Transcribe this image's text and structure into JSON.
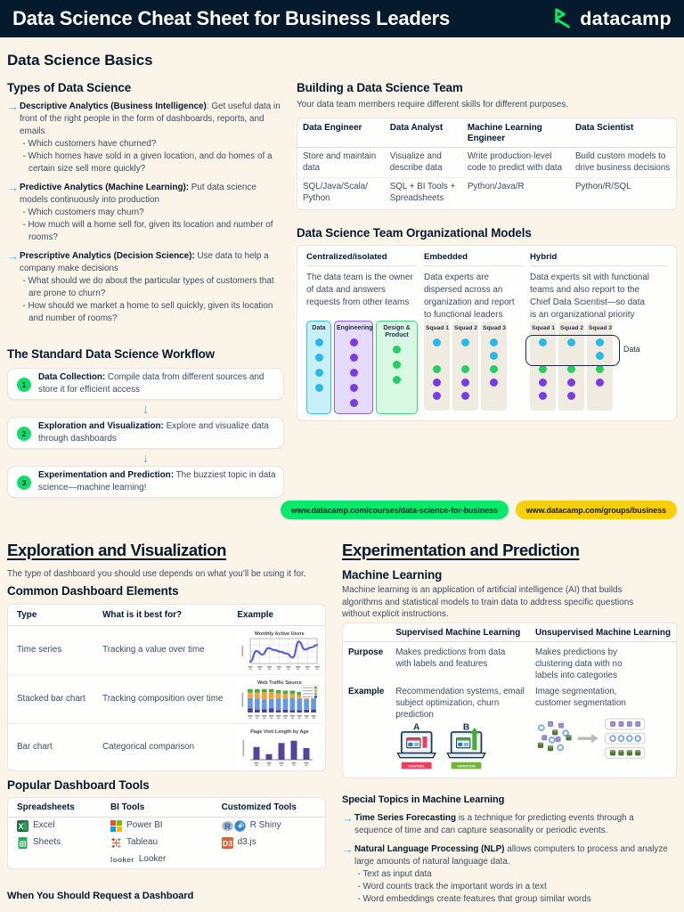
{
  "header": {
    "title": "Data Science Cheat Sheet for Business Leaders",
    "logo_text": "datacamp"
  },
  "colors": {
    "navy": "#05192d",
    "cream": "#faf4e9",
    "cyan": "#2fb8e8",
    "green": "#06e96b",
    "yellow": "#fbce0c",
    "purple": "#7b3be4",
    "blue": "#29b9e8"
  },
  "basics": {
    "title": "Data Science Basics",
    "types": {
      "title": "Types of Data Science",
      "items": [
        {
          "term": "Descriptive Analytics (Business Intelligence)",
          "desc": ": Get useful data in front of the right people in the form of dashboards, reports, and emails",
          "questions": [
            "- Which customers have churned?",
            "- Which homes have sold in a given location, and do homes of a certain size sell more quickly?"
          ]
        },
        {
          "term": "Predictive Analytics (Machine Learning):",
          "desc": " Put data science models continuously into production",
          "questions": [
            "- Which customers may churn?",
            "- How much will a home sell for, given its location and number of rooms?"
          ]
        },
        {
          "term": "Prescriptive Analytics (Decision Science):",
          "desc": " Use data to help a company make decisions",
          "questions": [
            "- What should we do about the particular types of customers that are prone to churn?",
            "- How should we market a home to sell quickly, given its location and number of rooms?"
          ]
        }
      ]
    },
    "workflow": {
      "title": "The Standard Data Science Workflow",
      "arrow": "↓",
      "steps": [
        {
          "num": "1",
          "term": "Data Collection:",
          "desc": " Compile data from different sources and store it for efficient access"
        },
        {
          "num": "2",
          "term": "Exploration and Visualization:",
          "desc": " Explore and visualize data through dashboards"
        },
        {
          "num": "3",
          "term": "Experimentation and Prediction:",
          "desc": " The buzziest topic in data science—machine learning!"
        }
      ]
    },
    "team": {
      "title": "Building a Data Science Team",
      "intro": "Your data team members require different skills for different purposes.",
      "headers": [
        "Data Engineer",
        "Data Analyst",
        "Machine Learning Engineer",
        "Data Scientist"
      ],
      "row_skills": [
        "Store and maintain data",
        "Visualize and describe data",
        "Write production-level code to predict with data",
        "Build custom models to drive business decisions"
      ],
      "row_tools": [
        "SQL/Java/Scala/ Python",
        "SQL + BI Tools + Spreadsheets",
        "Python/Java/R",
        "Python/R/SQL"
      ]
    },
    "org": {
      "title": "Data Science Team Organizational Models",
      "models": [
        {
          "name": "Centralized/isolated",
          "desc": "The data team is the owner of data and answers requests from other teams"
        },
        {
          "name": "Embedded",
          "desc": "Data experts are dispersed across an organization and report to functional leaders"
        },
        {
          "name": "Hybrid",
          "desc": "Data experts sit with functional teams and also report to the Chief Data Scientist—so data is an organizational priority"
        }
      ],
      "central_groups": [
        {
          "label": "Data",
          "style": "grp-blue",
          "dots": [
            "blue",
            "blue",
            "blue",
            "blue"
          ]
        },
        {
          "label": "Engineering",
          "style": "grp-purple",
          "dots": [
            "purple",
            "purple",
            "purple",
            "purple",
            "purple"
          ]
        },
        {
          "label": "Design & Product",
          "style": "grp-green",
          "dots": [
            "green",
            "green",
            "green"
          ]
        }
      ],
      "embedded_squads": [
        {
          "label": "Squad 1",
          "dots": [
            "blue",
            "empty",
            "green",
            "purple",
            "purple"
          ]
        },
        {
          "label": "Squad 2",
          "dots": [
            "blue",
            "empty",
            "green",
            "purple",
            "purple"
          ]
        },
        {
          "label": "Squad 3",
          "dots": [
            "blue",
            "blue",
            "green",
            "purple"
          ]
        }
      ],
      "hybrid_squads": [
        {
          "label": "Squad 1",
          "dots": [
            "blue",
            "empty",
            "green",
            "purple",
            "purple"
          ]
        },
        {
          "label": "Squad 2",
          "dots": [
            "blue",
            "empty",
            "green",
            "purple",
            "purple"
          ]
        },
        {
          "label": "Squad 3",
          "dots": [
            "blue",
            "blue",
            "green",
            "purple"
          ]
        }
      ],
      "hybrid_callout": "Data"
    },
    "links": {
      "courses": "www.datacamp.com/courses/data-science-for-business",
      "groups": "www.datacamp.com/groups/business"
    }
  },
  "exploration": {
    "title": "Exploration and Visualization",
    "intro": "The type of dashboard you should use depends on what you’ll be using it for.",
    "elements": {
      "title": "Common Dashboard Elements",
      "headers": [
        "Type",
        "What is it best for?",
        "Example"
      ],
      "rows": [
        {
          "type": "Time series",
          "best": "Tracking a value over time"
        },
        {
          "type": "Stacked bar chart",
          "best": "Tracking composition over time"
        },
        {
          "type": "Bar chart",
          "best": "Categorical comparison"
        }
      ]
    },
    "tools": {
      "title": "Popular Dashboard Tools",
      "headers": [
        "Spreadsheets",
        "BI Tools",
        "Customized Tools"
      ],
      "spreadsheets": [
        "Excel",
        "Sheets"
      ],
      "bi": [
        "Power BI",
        "Tableau",
        "Looker"
      ],
      "custom": [
        "R Shiny",
        "d3.js"
      ],
      "looker_mark": "looker"
    },
    "request_title": "When You Should Request a Dashboard"
  },
  "experimentation": {
    "title": "Experimentation and Prediction",
    "ml": {
      "title": "Machine Learning",
      "desc": "Machine learning is an application of artificial intelligence (AI) that builds algorithms and statistical models to train data to address specific questions without explicit instructions.",
      "col_headers": [
        "Supervised Machine Learning",
        "Unsupervised Machine Learning"
      ],
      "purpose_label": "Purpose",
      "purpose_supervised": "Makes predictions from data with labels and features",
      "purpose_unsupervised": "Makes predictions by clustering data with no labels into categories",
      "example_label": "Example",
      "example_supervised": "Recommendation systems, email subject optimization, churn prediction",
      "example_unsupervised": "Image segmentation, customer segmentation",
      "ab": {
        "a": "A",
        "b": "B",
        "control": "CONTROL",
        "variation": "VARIATION"
      }
    },
    "special": {
      "title": "Special Topics in Machine Learning",
      "items": [
        {
          "term": "Time Series Forecasting",
          "desc": " is a technique for predicting events through a sequence of time and can capture seasonality or periodic events.",
          "subs": []
        },
        {
          "term": "Natural Language Processing (NLP)",
          "desc": " allows computers to process and analyze large amounts of natural language data.",
          "subs": [
            "- Text as input data",
            "- Word counts track the important words in a text",
            "- Word embeddings create features that group similar words"
          ]
        }
      ]
    }
  },
  "chart_data": [
    {
      "id": "line-monthly-active-users",
      "type": "line",
      "title": "Monthly Active Users",
      "values": [
        8,
        50,
        36,
        62,
        54,
        47,
        40,
        24,
        88,
        56,
        64,
        74
      ],
      "ylim": [
        0,
        100
      ],
      "color": "#5a5fd0",
      "grid": true,
      "legend_position": "none"
    },
    {
      "id": "stacked-web-traffic-source",
      "type": "stacked_bar",
      "title": "Web Traffic Source",
      "categories": [
        "1",
        "2",
        "3",
        "4",
        "5",
        "6",
        "7",
        "8",
        "9",
        "10"
      ],
      "series": [
        {
          "name": "direct",
          "color": "#4d3d8f",
          "values": [
            16,
            12,
            13,
            16,
            10,
            11,
            10,
            9,
            11,
            12
          ]
        },
        {
          "name": "search",
          "color": "#6699dd",
          "values": [
            42,
            44,
            40,
            38,
            46,
            45,
            48,
            46,
            42,
            44
          ]
        },
        {
          "name": "referral",
          "color": "#f2a33c",
          "values": [
            22,
            24,
            28,
            28,
            20,
            18,
            16,
            14,
            12,
            12
          ]
        },
        {
          "name": "social",
          "color": "#56a444",
          "values": [
            14,
            14,
            13,
            12,
            14,
            14,
            14,
            14,
            20,
            17
          ]
        }
      ],
      "ylim": [
        0,
        100
      ],
      "legend_position": "top-right"
    },
    {
      "id": "bar-page-visit-length",
      "type": "bar",
      "title": "Page Visit Length by Age",
      "categories": [
        "<18",
        "18-25",
        "25-35",
        "35-45",
        "45+"
      ],
      "values": [
        55,
        24,
        72,
        82,
        50
      ],
      "ylim": [
        0,
        100
      ],
      "color": "#54439b",
      "legend_position": "none"
    }
  ]
}
